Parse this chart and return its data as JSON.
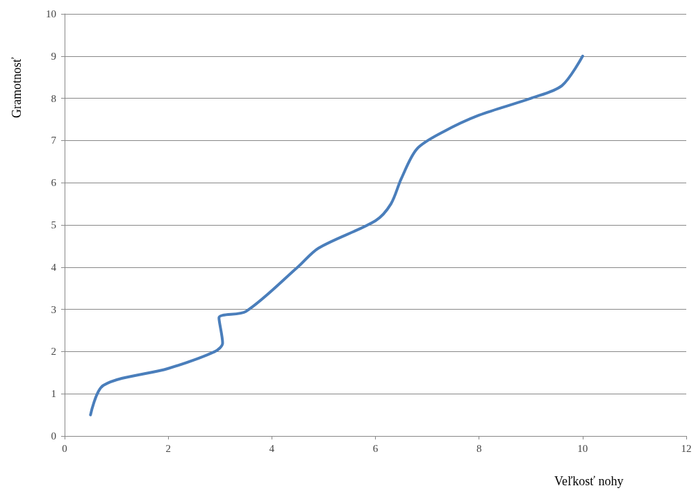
{
  "chart_data": {
    "type": "line",
    "xlabel": "Veľkosť nohy",
    "ylabel": "Gramotnosť",
    "x": [
      0.5,
      0.75,
      2,
      2.9,
      3.05,
      2.98,
      3.5,
      4.5,
      4.9,
      6,
      6.3,
      6.5,
      6.8,
      7.3,
      8,
      9,
      9.6,
      10
    ],
    "series": [
      {
        "color": "#4a7ebb",
        "values": [
          0.5,
          1.2,
          1.6,
          2,
          2.2,
          2.8,
          2.95,
          4,
          4.45,
          5.1,
          5.5,
          6.1,
          6.8,
          7.2,
          7.6,
          8,
          8.3,
          9
        ]
      }
    ],
    "xlim": [
      0,
      12
    ],
    "xticks": [
      0,
      2,
      4,
      6,
      8,
      10,
      12
    ],
    "ylim": [
      0,
      10
    ],
    "yticks": [
      0,
      1,
      2,
      3,
      4,
      5,
      6,
      7,
      8,
      9,
      10
    ],
    "grid": "y",
    "marker": "none",
    "line_style": "solid"
  }
}
